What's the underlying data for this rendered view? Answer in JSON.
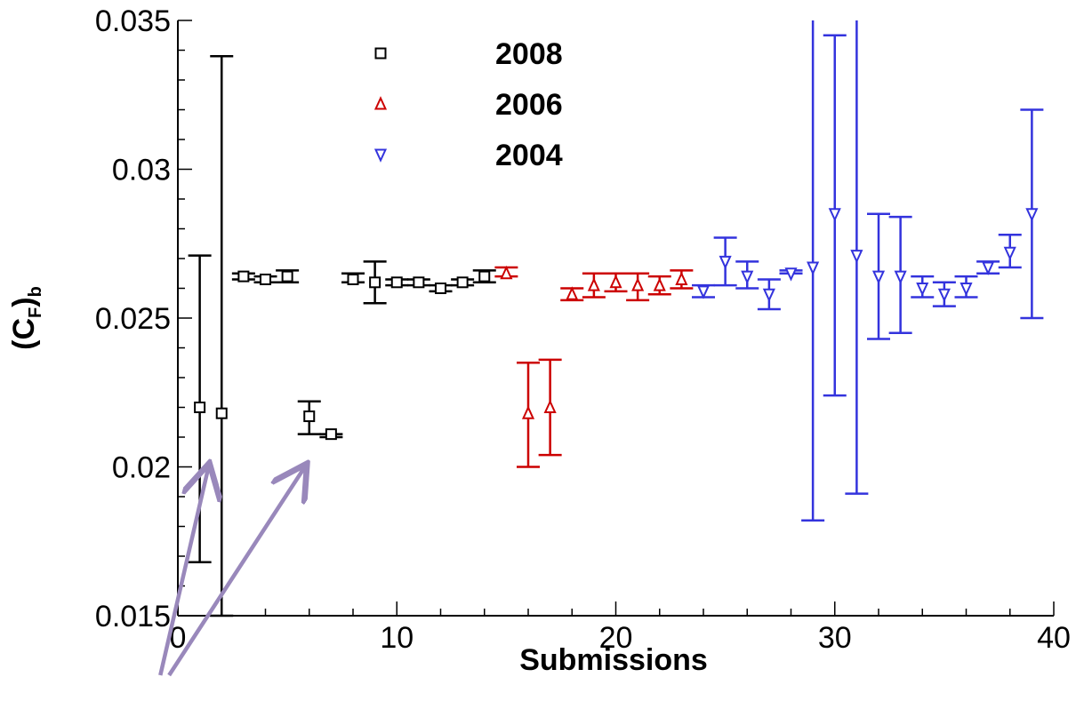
{
  "chart_data": {
    "type": "scatter",
    "title": "",
    "xlabel": "Submissions",
    "ylabel": "(C",
    "ylabel_sub": "F",
    "ylabel_close": ")",
    "ylabel_sub2": "b",
    "xlim": [
      0,
      40
    ],
    "ylim": [
      0.015,
      0.035
    ],
    "xticks": [
      0,
      10,
      20,
      30,
      40
    ],
    "xtick_labels": [
      "0",
      "10",
      "20",
      "30",
      "40"
    ],
    "yticks": [
      0.015,
      0.02,
      0.025,
      0.03,
      0.035
    ],
    "ytick_labels": [
      "0.015",
      "0.02",
      "0.025",
      "0.03",
      "0.035"
    ],
    "grid": false,
    "legend_position": "top-center",
    "series": [
      {
        "name": "2008",
        "marker": "square",
        "color": "#000000",
        "points": [
          {
            "x": 1,
            "y": 0.022,
            "lo": 0.0168,
            "hi": 0.0271
          },
          {
            "x": 2,
            "y": 0.0218,
            "lo": 0.015,
            "hi": 0.0338
          },
          {
            "x": 3,
            "y": 0.0264,
            "lo": 0.0263,
            "hi": 0.0265
          },
          {
            "x": 4,
            "y": 0.0263,
            "lo": 0.0262,
            "hi": 0.0264
          },
          {
            "x": 5,
            "y": 0.0264,
            "lo": 0.0262,
            "hi": 0.0266
          },
          {
            "x": 6,
            "y": 0.0217,
            "lo": 0.0211,
            "hi": 0.0222
          },
          {
            "x": 7,
            "y": 0.0211,
            "lo": 0.021,
            "hi": 0.0211
          },
          {
            "x": 8,
            "y": 0.0263,
            "lo": 0.0262,
            "hi": 0.0265
          },
          {
            "x": 9,
            "y": 0.0262,
            "lo": 0.0255,
            "hi": 0.0269
          },
          {
            "x": 10,
            "y": 0.0262,
            "lo": 0.0261,
            "hi": 0.0263
          },
          {
            "x": 11,
            "y": 0.0262,
            "lo": 0.0261,
            "hi": 0.0263
          },
          {
            "x": 12,
            "y": 0.026,
            "lo": 0.0259,
            "hi": 0.0261
          },
          {
            "x": 13,
            "y": 0.0262,
            "lo": 0.0261,
            "hi": 0.0263
          },
          {
            "x": 14,
            "y": 0.0264,
            "lo": 0.0262,
            "hi": 0.0266
          }
        ]
      },
      {
        "name": "2006",
        "marker": "triangle-up",
        "color": "#cc0000",
        "points": [
          {
            "x": 15,
            "y": 0.0265,
            "lo": 0.0264,
            "hi": 0.0267
          },
          {
            "x": 16,
            "y": 0.0218,
            "lo": 0.02,
            "hi": 0.0235
          },
          {
            "x": 17,
            "y": 0.022,
            "lo": 0.0204,
            "hi": 0.0236
          },
          {
            "x": 18,
            "y": 0.0258,
            "lo": 0.0256,
            "hi": 0.026
          },
          {
            "x": 19,
            "y": 0.0261,
            "lo": 0.0257,
            "hi": 0.0265
          },
          {
            "x": 20,
            "y": 0.0262,
            "lo": 0.0259,
            "hi": 0.0265
          },
          {
            "x": 21,
            "y": 0.0261,
            "lo": 0.0256,
            "hi": 0.0265
          },
          {
            "x": 22,
            "y": 0.0261,
            "lo": 0.0258,
            "hi": 0.0264
          },
          {
            "x": 23,
            "y": 0.0263,
            "lo": 0.026,
            "hi": 0.0266
          }
        ]
      },
      {
        "name": "2004",
        "marker": "triangle-down",
        "color": "#3333dd",
        "points": [
          {
            "x": 24,
            "y": 0.0259,
            "lo": 0.0257,
            "hi": 0.0261
          },
          {
            "x": 25,
            "y": 0.0269,
            "lo": 0.0261,
            "hi": 0.0277
          },
          {
            "x": 26,
            "y": 0.0264,
            "lo": 0.026,
            "hi": 0.0269
          },
          {
            "x": 27,
            "y": 0.0258,
            "lo": 0.0253,
            "hi": 0.0263
          },
          {
            "x": 28,
            "y": 0.0265,
            "lo": 0.0265,
            "hi": 0.0266
          },
          {
            "x": 29,
            "y": 0.0267,
            "lo": 0.0182,
            "hi": 0.035
          },
          {
            "x": 30,
            "y": 0.0285,
            "lo": 0.0224,
            "hi": 0.0345
          },
          {
            "x": 31,
            "y": 0.0271,
            "lo": 0.0191,
            "hi": 0.035
          },
          {
            "x": 32,
            "y": 0.0264,
            "lo": 0.0243,
            "hi": 0.0285
          },
          {
            "x": 33,
            "y": 0.0264,
            "lo": 0.0245,
            "hi": 0.0284
          },
          {
            "x": 34,
            "y": 0.026,
            "lo": 0.0257,
            "hi": 0.0264
          },
          {
            "x": 35,
            "y": 0.0258,
            "lo": 0.0254,
            "hi": 0.0262
          },
          {
            "x": 36,
            "y": 0.026,
            "lo": 0.0257,
            "hi": 0.0264
          },
          {
            "x": 37,
            "y": 0.0267,
            "lo": 0.0265,
            "hi": 0.0269
          },
          {
            "x": 38,
            "y": 0.0272,
            "lo": 0.0267,
            "hi": 0.0278
          },
          {
            "x": 39,
            "y": 0.0285,
            "lo": 0.025,
            "hi": 0.032
          }
        ]
      }
    ],
    "annotations": [
      {
        "type": "arrow",
        "color": "#9988bb",
        "from": [
          -0.8,
          0.013
        ],
        "to": [
          1.4,
          0.02
        ]
      },
      {
        "type": "arrow",
        "color": "#9988bb",
        "from": [
          -0.4,
          0.013
        ],
        "to": [
          5.8,
          0.02
        ]
      }
    ]
  }
}
